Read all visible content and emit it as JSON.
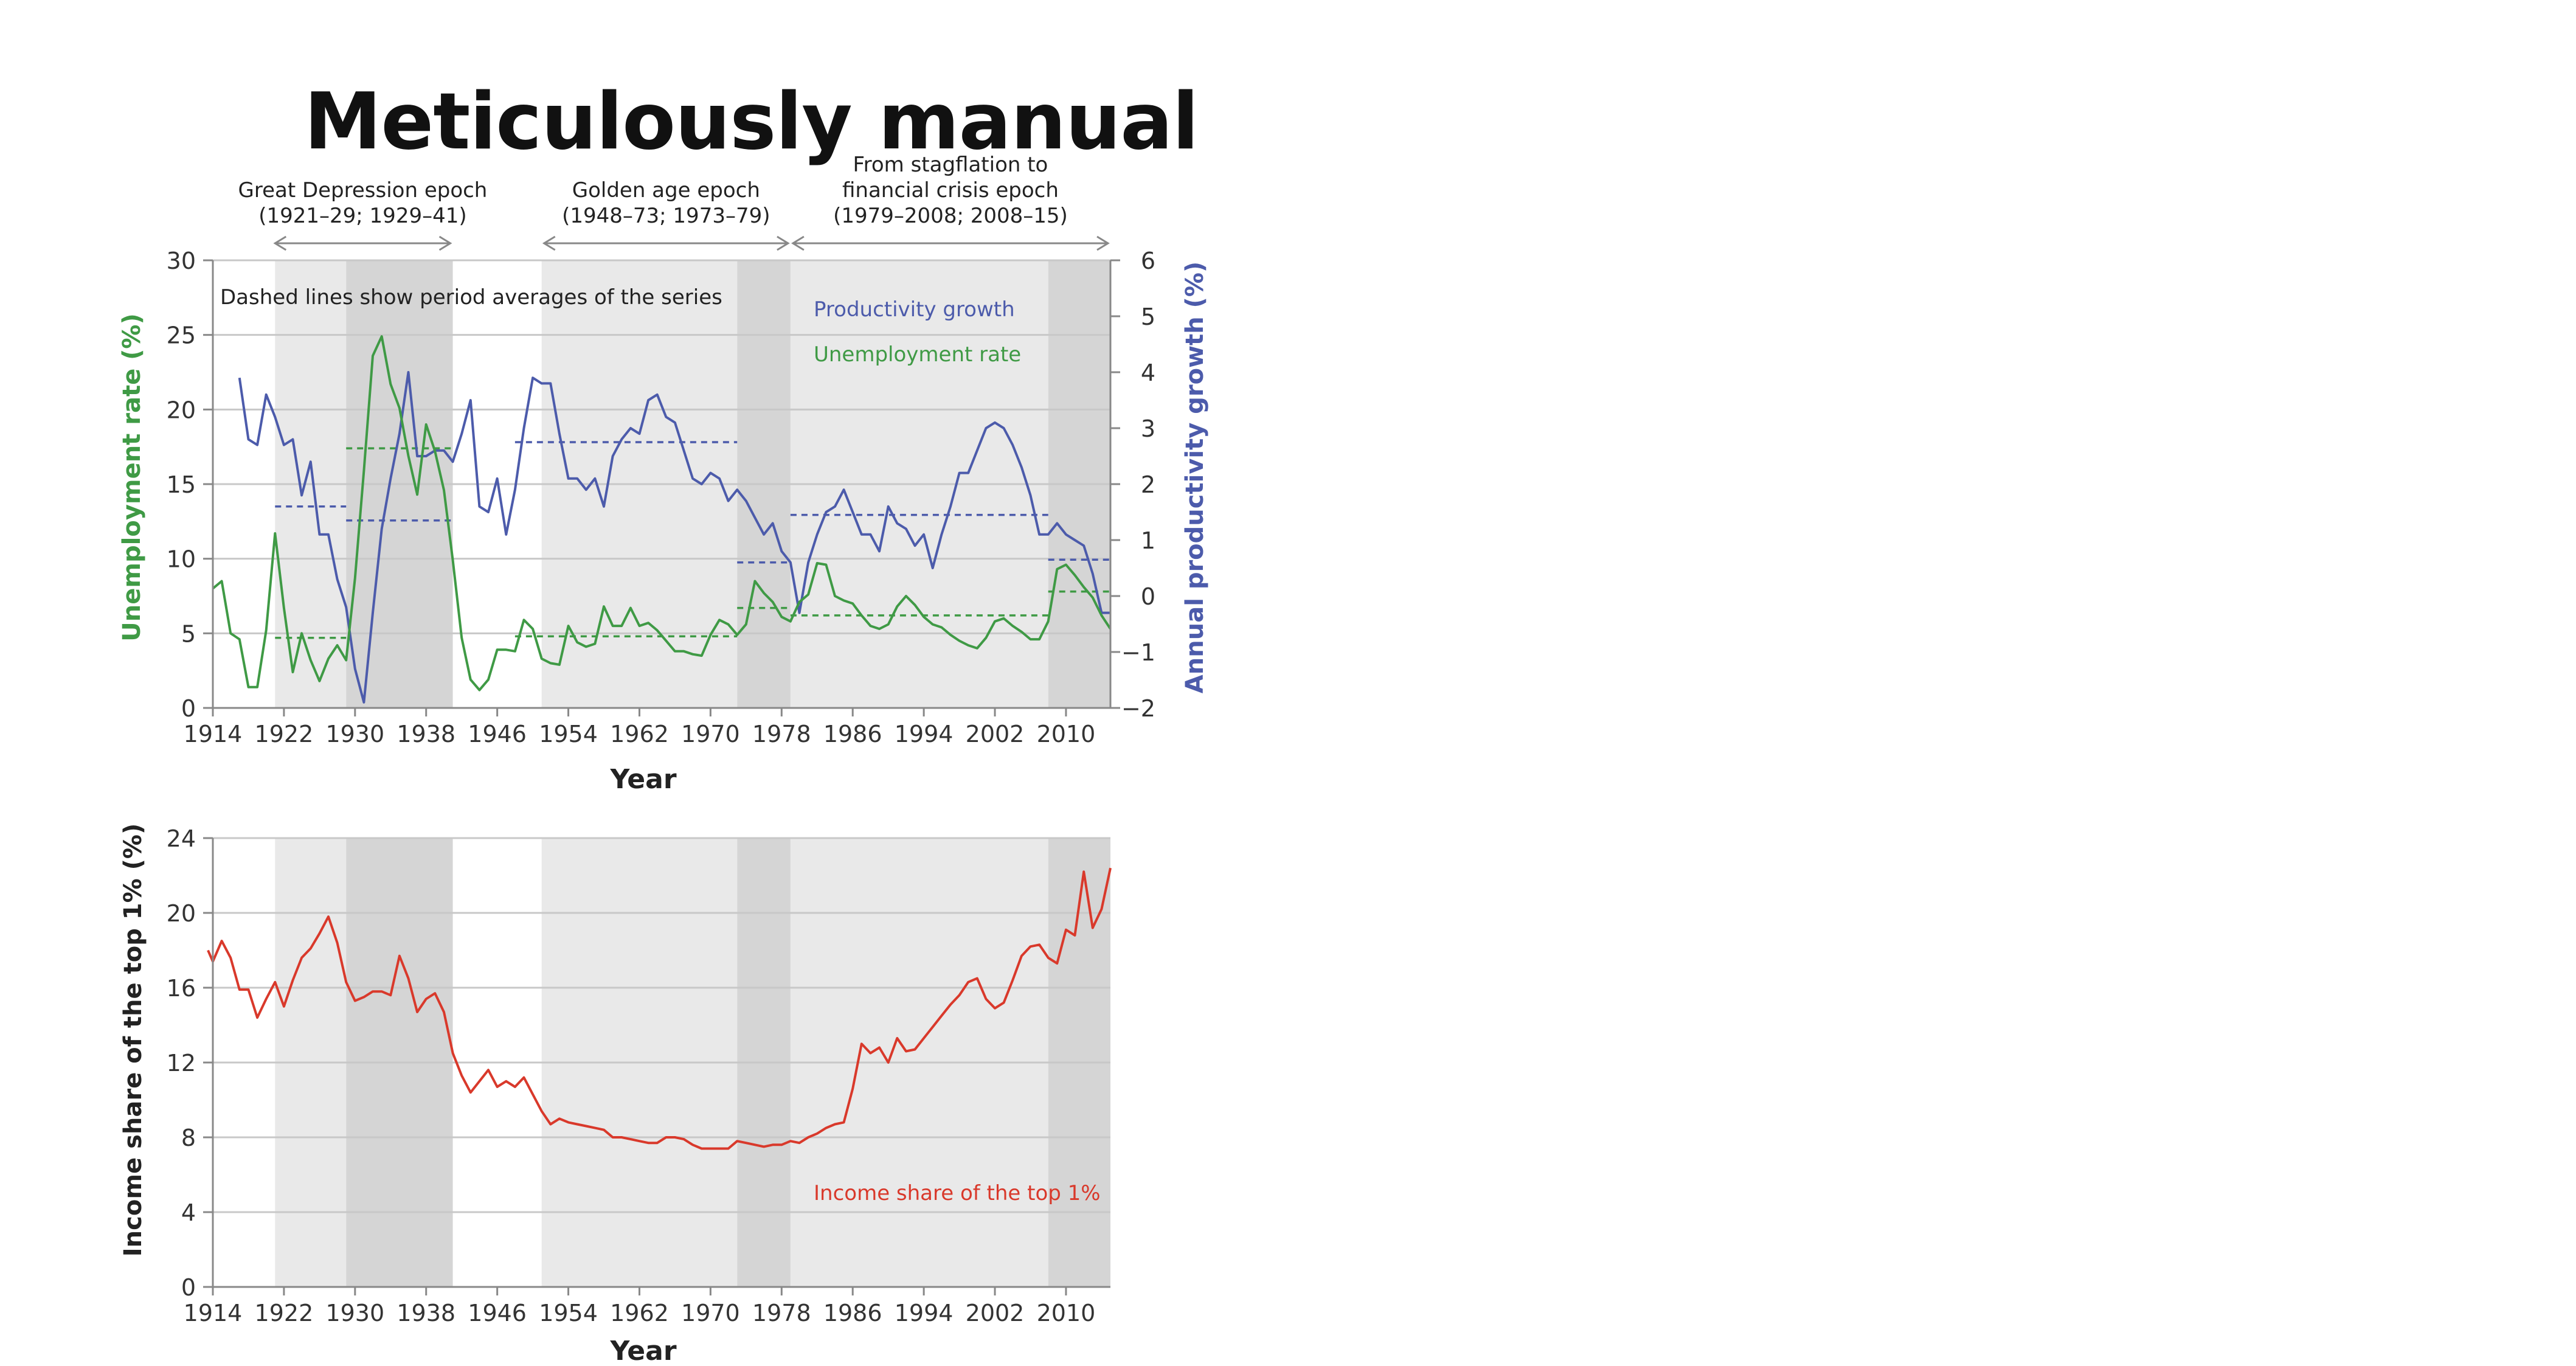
{
  "page": {
    "title": "Meticulously manual"
  },
  "colors": {
    "productivity": "#4c5bab",
    "unemployment": "#3f9a45",
    "income": "#d9392b",
    "shade_light": "#e9e9e9",
    "shade_dark": "#d5d5d5"
  },
  "epochs": [
    {
      "label_lines": [
        "Great Depression epoch",
        "(1921–29; 1929–41)"
      ],
      "from": 1921,
      "to": 1941
    },
    {
      "label_lines": [
        "Golden age epoch",
        "(1948–73; 1973–79)"
      ],
      "from": 1951,
      "to": 1979
    },
    {
      "label_lines": [
        "From stagflation to",
        "financial crisis epoch",
        "(1979–2008; 2008–15)"
      ],
      "from": 1979,
      "to": 2015
    }
  ],
  "shaded_periods": [
    {
      "from": 1921,
      "to": 1929,
      "tone": "light"
    },
    {
      "from": 1929,
      "to": 1941,
      "tone": "dark"
    },
    {
      "from": 1951,
      "to": 1973,
      "tone": "light"
    },
    {
      "from": 1973,
      "to": 1979,
      "tone": "dark"
    },
    {
      "from": 1979,
      "to": 2008,
      "tone": "light"
    },
    {
      "from": 2008,
      "to": 2015,
      "tone": "dark"
    }
  ],
  "chart_data": [
    {
      "type": "line",
      "note": "Dashed lines show period averages of the series",
      "xlabel": "Year",
      "xlim": [
        1914,
        2015
      ],
      "xticks": [
        1914,
        1922,
        1930,
        1938,
        1946,
        1954,
        1962,
        1970,
        1978,
        1986,
        1994,
        2002,
        2010
      ],
      "ylabel_left": "Unemployment rate (%)",
      "ylim_left": [
        0,
        30
      ],
      "yticks_left": [
        0,
        5,
        10,
        15,
        20,
        25,
        30
      ],
      "ylabel_right": "Annual productivity growth (%)",
      "ylim_right": [
        -2,
        6
      ],
      "yticks_right": [
        6,
        5,
        4,
        3,
        2,
        1,
        0,
        -1,
        -2
      ],
      "yticks_right_labels": [
        "6",
        "5",
        "4",
        "3",
        "2",
        "1",
        "0",
        "−1",
        "−2"
      ],
      "grid": true,
      "series": [
        {
          "name": "Productivity growth",
          "axis": "right",
          "x": [
            1917,
            1918,
            1919,
            1920,
            1921,
            1922,
            1923,
            1924,
            1925,
            1926,
            1927,
            1928,
            1929,
            1930,
            1931,
            1932,
            1933,
            1934,
            1935,
            1936,
            1937,
            1938,
            1939,
            1940,
            1941,
            1942,
            1943,
            1944,
            1945,
            1946,
            1947,
            1948,
            1949,
            1950,
            1951,
            1952,
            1953,
            1954,
            1955,
            1956,
            1957,
            1958,
            1959,
            1960,
            1961,
            1962,
            1963,
            1964,
            1965,
            1966,
            1967,
            1968,
            1969,
            1970,
            1971,
            1972,
            1973,
            1974,
            1975,
            1976,
            1977,
            1978,
            1979,
            1980,
            1981,
            1982,
            1983,
            1984,
            1985,
            1986,
            1987,
            1988,
            1989,
            1990,
            1991,
            1992,
            1993,
            1994,
            1995,
            1996,
            1997,
            1998,
            1999,
            2000,
            2001,
            2002,
            2003,
            2004,
            2005,
            2006,
            2007,
            2008,
            2009,
            2010,
            2011,
            2012,
            2013,
            2014,
            2015
          ],
          "values": [
            3.9,
            2.8,
            2.7,
            3.6,
            3.2,
            2.7,
            2.8,
            1.8,
            2.4,
            1.1,
            1.1,
            0.3,
            -0.2,
            -1.3,
            -1.9,
            -0.3,
            1.2,
            2.1,
            2.9,
            4.0,
            2.5,
            2.5,
            2.6,
            2.6,
            2.4,
            2.9,
            3.5,
            1.6,
            1.5,
            2.1,
            1.1,
            1.9,
            3.0,
            3.9,
            3.8,
            3.8,
            2.9,
            2.1,
            2.1,
            1.9,
            2.1,
            1.6,
            2.5,
            2.8,
            3.0,
            2.9,
            3.5,
            3.6,
            3.2,
            3.1,
            2.6,
            2.1,
            2.0,
            2.2,
            2.1,
            1.7,
            1.9,
            1.7,
            1.4,
            1.1,
            1.3,
            0.8,
            0.6,
            -0.3,
            0.6,
            1.1,
            1.5,
            1.6,
            1.9,
            1.5,
            1.1,
            1.1,
            0.8,
            1.6,
            1.3,
            1.2,
            0.9,
            1.1,
            0.5,
            1.1,
            1.6,
            2.2,
            2.2,
            2.6,
            3.0,
            3.1,
            3.0,
            2.7,
            2.3,
            1.8,
            1.1,
            1.1,
            1.3,
            1.1,
            1.0,
            0.9,
            0.4,
            -0.3,
            -0.3
          ]
        },
        {
          "name": "Unemployment rate",
          "axis": "left",
          "x": [
            1914,
            1915,
            1916,
            1917,
            1918,
            1919,
            1920,
            1921,
            1922,
            1923,
            1924,
            1925,
            1926,
            1927,
            1928,
            1929,
            1930,
            1931,
            1932,
            1933,
            1934,
            1935,
            1936,
            1937,
            1938,
            1939,
            1940,
            1941,
            1942,
            1943,
            1944,
            1945,
            1946,
            1947,
            1948,
            1949,
            1950,
            1951,
            1952,
            1953,
            1954,
            1955,
            1956,
            1957,
            1958,
            1959,
            1960,
            1961,
            1962,
            1963,
            1964,
            1965,
            1966,
            1967,
            1968,
            1969,
            1970,
            1971,
            1972,
            1973,
            1974,
            1975,
            1976,
            1977,
            1978,
            1979,
            1980,
            1981,
            1982,
            1983,
            1984,
            1985,
            1986,
            1987,
            1988,
            1989,
            1990,
            1991,
            1992,
            1993,
            1994,
            1995,
            1996,
            1997,
            1998,
            1999,
            2000,
            2001,
            2002,
            2003,
            2004,
            2005,
            2006,
            2007,
            2008,
            2009,
            2010,
            2011,
            2012,
            2013,
            2014,
            2015
          ],
          "values": [
            8.0,
            8.5,
            5.0,
            4.6,
            1.4,
            1.4,
            5.2,
            11.7,
            6.7,
            2.4,
            5.0,
            3.2,
            1.8,
            3.3,
            4.2,
            3.2,
            8.7,
            15.9,
            23.6,
            24.9,
            21.7,
            20.1,
            16.9,
            14.3,
            19.0,
            17.2,
            14.6,
            9.9,
            4.7,
            1.9,
            1.2,
            1.9,
            3.9,
            3.9,
            3.8,
            5.9,
            5.3,
            3.3,
            3.0,
            2.9,
            5.5,
            4.4,
            4.1,
            4.3,
            6.8,
            5.5,
            5.5,
            6.7,
            5.5,
            5.7,
            5.2,
            4.5,
            3.8,
            3.8,
            3.6,
            3.5,
            4.9,
            5.9,
            5.6,
            4.9,
            5.6,
            8.5,
            7.7,
            7.1,
            6.1,
            5.8,
            7.1,
            7.6,
            9.7,
            9.6,
            7.5,
            7.2,
            7.0,
            6.2,
            5.5,
            5.3,
            5.6,
            6.8,
            7.5,
            6.9,
            6.1,
            5.6,
            5.4,
            4.9,
            4.5,
            4.2,
            4.0,
            4.7,
            5.8,
            6.0,
            5.5,
            5.1,
            4.6,
            4.6,
            5.8,
            9.3,
            9.6,
            8.9,
            8.1,
            7.4,
            6.2,
            5.3
          ]
        }
      ],
      "period_averages": [
        {
          "series": "Productivity growth",
          "from": 1921,
          "to": 1929,
          "value": 1.6
        },
        {
          "series": "Productivity growth",
          "from": 1929,
          "to": 1941,
          "value": 1.35
        },
        {
          "series": "Productivity growth",
          "from": 1948,
          "to": 1973,
          "value": 2.75
        },
        {
          "series": "Productivity growth",
          "from": 1973,
          "to": 1979,
          "value": 0.6
        },
        {
          "series": "Productivity growth",
          "from": 1979,
          "to": 2008,
          "value": 1.45
        },
        {
          "series": "Productivity growth",
          "from": 2008,
          "to": 2015,
          "value": 0.65
        },
        {
          "series": "Unemployment rate",
          "from": 1921,
          "to": 1929,
          "value": 4.7
        },
        {
          "series": "Unemployment rate",
          "from": 1929,
          "to": 1941,
          "value": 17.4
        },
        {
          "series": "Unemployment rate",
          "from": 1948,
          "to": 1973,
          "value": 4.8
        },
        {
          "series": "Unemployment rate",
          "from": 1973,
          "to": 1979,
          "value": 6.7
        },
        {
          "series": "Unemployment rate",
          "from": 1979,
          "to": 2008,
          "value": 6.2
        },
        {
          "series": "Unemployment rate",
          "from": 2008,
          "to": 2015,
          "value": 7.8
        }
      ]
    },
    {
      "type": "line",
      "xlabel": "Year",
      "xlim": [
        1914,
        2015
      ],
      "xticks": [
        1914,
        1922,
        1930,
        1938,
        1946,
        1954,
        1962,
        1970,
        1978,
        1986,
        1994,
        2002,
        2010
      ],
      "ylabel": "Income share of the top 1% (%)",
      "ylim": [
        0,
        24
      ],
      "yticks": [
        0,
        4,
        8,
        12,
        16,
        20,
        24
      ],
      "grid": true,
      "series": [
        {
          "name": "Income share of the top 1%",
          "x": [
            1913,
            1914,
            1915,
            1916,
            1917,
            1918,
            1919,
            1920,
            1921,
            1922,
            1923,
            1924,
            1925,
            1926,
            1927,
            1928,
            1929,
            1930,
            1931,
            1932,
            1933,
            1934,
            1935,
            1936,
            1937,
            1938,
            1939,
            1940,
            1941,
            1942,
            1943,
            1944,
            1945,
            1946,
            1947,
            1948,
            1949,
            1950,
            1951,
            1952,
            1953,
            1954,
            1955,
            1956,
            1957,
            1958,
            1959,
            1960,
            1961,
            1962,
            1963,
            1964,
            1965,
            1966,
            1967,
            1968,
            1969,
            1970,
            1971,
            1972,
            1973,
            1974,
            1975,
            1976,
            1977,
            1978,
            1979,
            1980,
            1981,
            1982,
            1983,
            1984,
            1985,
            1986,
            1987,
            1988,
            1989,
            1990,
            1991,
            1992,
            1993,
            1994,
            1995,
            1996,
            1997,
            1998,
            1999,
            2000,
            2001,
            2002,
            2003,
            2004,
            2005,
            2006,
            2007,
            2008,
            2009,
            2010,
            2011,
            2012,
            2013,
            2014,
            2015
          ],
          "values": [
            18.0,
            17.4,
            18.5,
            17.6,
            15.9,
            15.9,
            14.4,
            15.4,
            16.3,
            15.0,
            16.4,
            17.6,
            18.1,
            18.9,
            19.8,
            18.4,
            16.3,
            15.3,
            15.5,
            15.8,
            15.8,
            15.6,
            17.7,
            16.5,
            14.7,
            15.4,
            15.7,
            14.7,
            12.5,
            11.3,
            10.4,
            11.0,
            11.6,
            10.7,
            11.0,
            10.7,
            11.2,
            10.3,
            9.4,
            8.7,
            9.0,
            8.8,
            8.7,
            8.6,
            8.5,
            8.4,
            8.0,
            8.0,
            7.9,
            7.8,
            7.7,
            7.7,
            8.0,
            8.0,
            7.9,
            7.6,
            7.4,
            7.4,
            7.4,
            7.4,
            7.8,
            7.7,
            7.6,
            7.5,
            7.6,
            7.6,
            7.8,
            7.7,
            8.0,
            8.2,
            8.5,
            8.7,
            8.8,
            10.6,
            13.0,
            12.5,
            12.8,
            12.0,
            13.3,
            12.6,
            12.7,
            13.3,
            13.9,
            14.5,
            15.1,
            15.6,
            16.3,
            16.5,
            15.4,
            14.9,
            15.2,
            16.4,
            17.7,
            18.2,
            18.3,
            17.6,
            17.3,
            19.1,
            18.8,
            22.2,
            19.2,
            20.2,
            22.4
          ]
        }
      ]
    }
  ]
}
